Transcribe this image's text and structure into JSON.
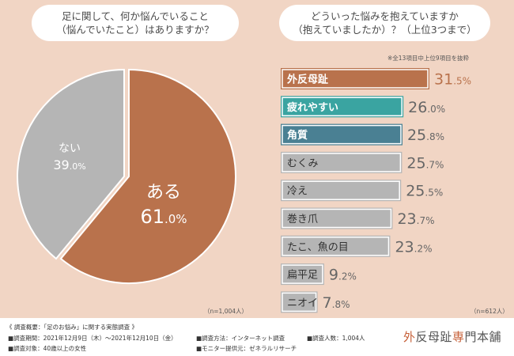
{
  "left": {
    "question_line1": "足に関して、何か悩んでいること",
    "question_line2": "（悩んでいたこと）はありますか？",
    "n_label": "（n=1,004人）"
  },
  "right": {
    "question_line1": "どういった悩みを抱えていますか",
    "question_line2": "（抱えていましたか）？（上位3つまで）",
    "note": "※全13項目中上位9項目を抜粋",
    "n_label": "（n=612人）"
  },
  "chart_data": [
    {
      "type": "pie",
      "title": "足に関して、何か悩んでいること（悩んでいたこと）はありますか？",
      "slices": [
        {
          "label": "ある",
          "value": 61.0,
          "value_label": "61.0%",
          "color": "#b9724c"
        },
        {
          "label": "ない",
          "value": 39.0,
          "value_label": "39.0%",
          "color": "#b5b5b5"
        }
      ]
    },
    {
      "type": "bar",
      "orientation": "horizontal",
      "title": "どういった悩みを抱えていますか（抱えていましたか）？（上位3つまで）",
      "categories": [
        "外反母趾",
        "疲れやすい",
        "角質",
        "むくみ",
        "冷え",
        "巻き爪",
        "たこ、魚の目",
        "扁平足",
        "ニオイ"
      ],
      "values": [
        31.5,
        26.0,
        25.8,
        25.7,
        25.5,
        23.7,
        23.2,
        9.2,
        7.8
      ],
      "value_labels": [
        "31.5%",
        "26.0%",
        "25.8%",
        "25.7%",
        "25.5%",
        "23.7%",
        "23.2%",
        "9.2%",
        "7.8%"
      ],
      "colors": [
        "#b9724c",
        "#3aa4a1",
        "#4a8093",
        "#b5b5b5",
        "#b5b5b5",
        "#b5b5b5",
        "#b5b5b5",
        "#b5b5b5",
        "#b5b5b5"
      ],
      "xlim": [
        0,
        31.5
      ]
    }
  ],
  "footer": {
    "title": "《 調査概要：「足のお悩み」に関する実態調査 》",
    "period": "■調査期間：2021年12月9日（木）〜2021年12月10日（金）",
    "method": "■調査方法：インターネット調査",
    "count": "■調査人数：1,004人",
    "target": "■調査対象：40歳以上の女性",
    "provider": "■モニター提供元：ゼネラルリサーチ",
    "logo_accent": "外",
    "logo_rest": "反母趾",
    "logo_accent2": "専",
    "logo_rest2": "門本舗"
  }
}
